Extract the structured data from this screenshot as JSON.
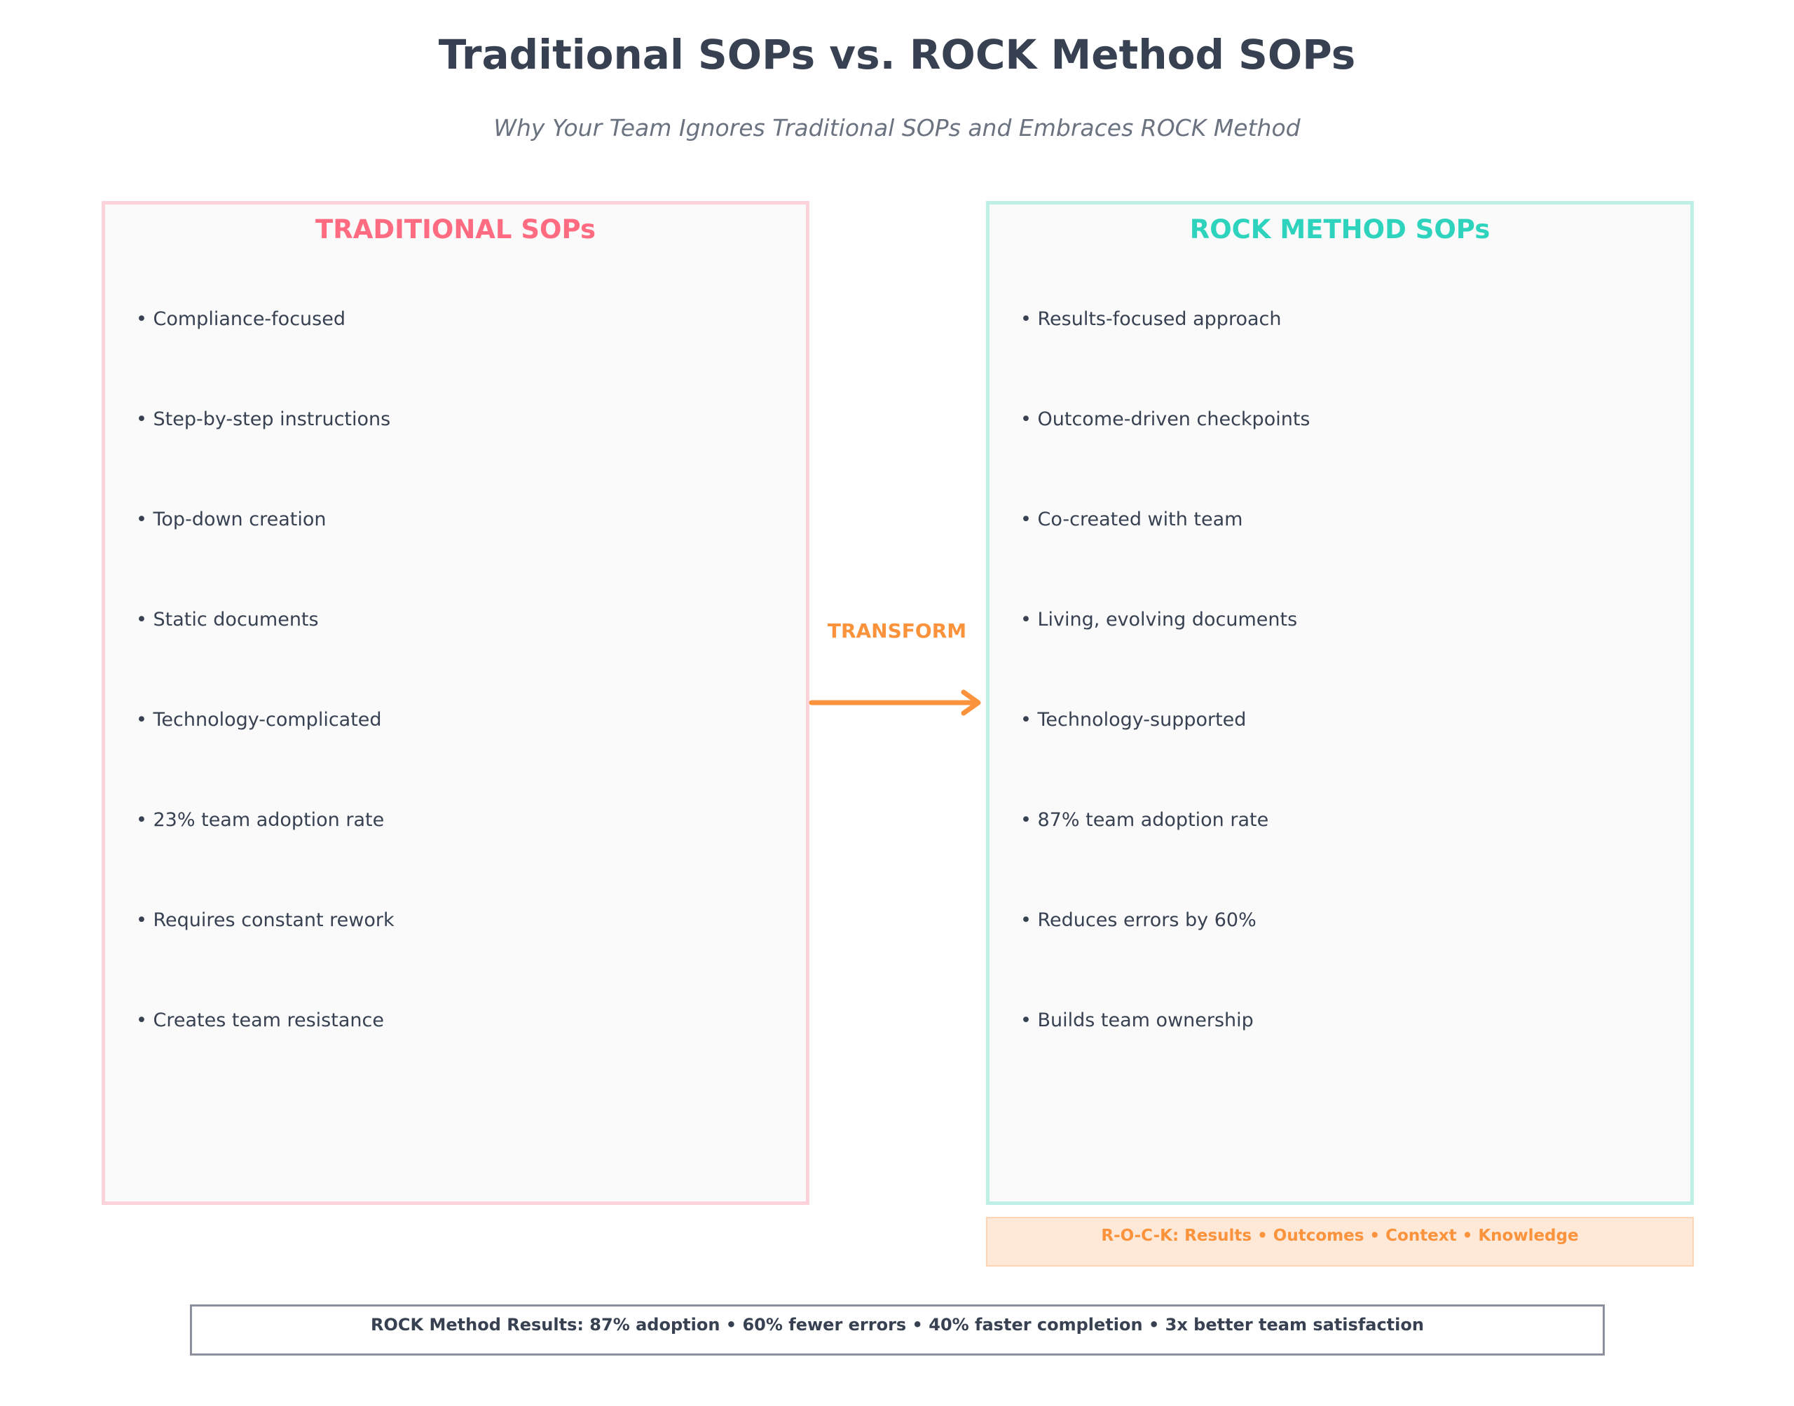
{
  "title": "Traditional SOPs vs. ROCK Method SOPs",
  "subtitle": "Why Your Team Ignores Traditional SOPs and Embraces ROCK Method",
  "traditional": {
    "heading": "TRADITIONAL SOPs",
    "color": "#ff6b81",
    "items": [
      "• Compliance-focused",
      "• Step-by-step instructions",
      "• Top-down creation",
      "• Static documents",
      "• Technology-complicated",
      "• 23% team adoption rate",
      "• Requires constant rework",
      "• Creates team resistance"
    ]
  },
  "rock": {
    "heading": "ROCK METHOD SOPs",
    "color": "#2ed3bd",
    "items": [
      "• Results-focused approach",
      "• Outcome-driven checkpoints",
      "• Co-created with team",
      "• Living, evolving documents",
      "• Technology-supported",
      "• 87% team adoption rate",
      "• Reduces errors by 60%",
      "• Builds team ownership"
    ]
  },
  "transform": {
    "label": "TRANSFORM",
    "color": "#fb923c",
    "icon": "arrow-right-icon"
  },
  "rock_acronym": "R-O-C-K: Results • Outcomes • Context • Knowledge",
  "results_summary": "ROCK Method Results: 87% adoption • 60% fewer errors • 40% faster completion • 3x better team satisfaction"
}
